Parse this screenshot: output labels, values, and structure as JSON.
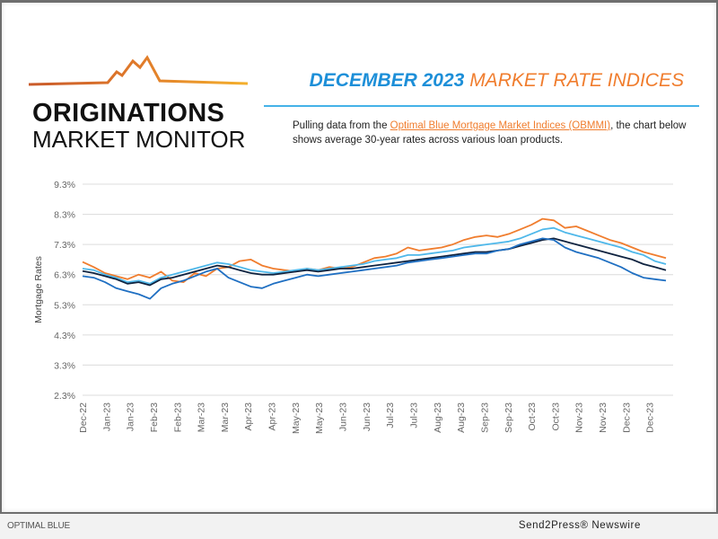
{
  "header": {
    "logo_line1": "ORIGINATIONS",
    "logo_line2": "MARKET MONITOR",
    "headline_part1": "DECEMBER 2023",
    "headline_part2": "MARKET RATE INDICES",
    "description_pre": "Pulling data from the ",
    "description_link": "Optimal Blue Mortgage Market Indices (OBMMI)",
    "description_post": ", the chart below shows average 30-year rates across various loan products."
  },
  "colors": {
    "headline_blue": "#1d8fd8",
    "accent_orange": "#f07d2e",
    "rule_blue": "#45b2e8"
  },
  "footer": {
    "left": "OPTIMAL BLUE",
    "right": "Send2Press® Newswire"
  },
  "chart_data": {
    "type": "line",
    "title": "",
    "xlabel": "",
    "ylabel": "Mortgage Rates",
    "ylim": [
      2.3,
      9.3
    ],
    "yticks": [
      "9.3%",
      "8.3%",
      "7.3%",
      "6.3%",
      "5.3%",
      "4.3%",
      "3.3%",
      "2.3%"
    ],
    "ytick_values": [
      9.3,
      8.3,
      7.3,
      6.3,
      5.3,
      4.3,
      3.3,
      2.3
    ],
    "xticks": [
      "Dec-22",
      "Jan-23",
      "Jan-23",
      "Feb-23",
      "Feb-23",
      "Mar-23",
      "Mar-23",
      "Apr-23",
      "Apr-23",
      "May-23",
      "May-23",
      "Jun-23",
      "Jun-23",
      "Jul-23",
      "Jul-23",
      "Aug-23",
      "Aug-23",
      "Sep-23",
      "Sep-23",
      "Oct-23",
      "Oct-23",
      "Nov-23",
      "Nov-23",
      "Dec-23",
      "Dec-23"
    ],
    "grid": true,
    "legend": "none",
    "series": [
      {
        "name": "Orange series",
        "color": "#f07d2e",
        "values": [
          6.72,
          6.55,
          6.35,
          6.25,
          6.15,
          6.3,
          6.2,
          6.4,
          6.1,
          6.05,
          6.35,
          6.25,
          6.5,
          6.55,
          6.75,
          6.8,
          6.6,
          6.5,
          6.45,
          6.4,
          6.5,
          6.45,
          6.55,
          6.5,
          6.55,
          6.7,
          6.85,
          6.9,
          7.0,
          7.2,
          7.1,
          7.15,
          7.2,
          7.3,
          7.45,
          7.55,
          7.6,
          7.55,
          7.65,
          7.8,
          7.95,
          8.15,
          8.1,
          7.85,
          7.9,
          7.75,
          7.6,
          7.45,
          7.35,
          7.2,
          7.05,
          6.95,
          6.85
        ]
      },
      {
        "name": "Light blue series",
        "color": "#4fb8ea",
        "values": [
          6.5,
          6.45,
          6.3,
          6.2,
          6.05,
          6.1,
          6.0,
          6.2,
          6.3,
          6.4,
          6.5,
          6.6,
          6.7,
          6.65,
          6.55,
          6.45,
          6.4,
          6.35,
          6.4,
          6.45,
          6.5,
          6.45,
          6.5,
          6.55,
          6.6,
          6.65,
          6.75,
          6.8,
          6.85,
          6.95,
          6.95,
          7.0,
          7.05,
          7.1,
          7.2,
          7.25,
          7.3,
          7.35,
          7.4,
          7.5,
          7.65,
          7.8,
          7.85,
          7.7,
          7.6,
          7.5,
          7.4,
          7.3,
          7.2,
          7.05,
          6.95,
          6.75,
          6.65
        ]
      },
      {
        "name": "Navy series",
        "color": "#0f2340",
        "values": [
          6.42,
          6.35,
          6.25,
          6.15,
          6.0,
          6.05,
          5.95,
          6.15,
          6.2,
          6.3,
          6.4,
          6.5,
          6.6,
          6.55,
          6.45,
          6.35,
          6.3,
          6.3,
          6.35,
          6.4,
          6.45,
          6.4,
          6.45,
          6.5,
          6.5,
          6.55,
          6.6,
          6.65,
          6.7,
          6.75,
          6.8,
          6.85,
          6.9,
          6.95,
          7.0,
          7.05,
          7.05,
          7.1,
          7.15,
          7.25,
          7.35,
          7.45,
          7.5,
          7.4,
          7.3,
          7.2,
          7.1,
          7.0,
          6.9,
          6.8,
          6.65,
          6.55,
          6.45
        ]
      },
      {
        "name": "Blue series",
        "color": "#1f6fc2",
        "values": [
          6.25,
          6.2,
          6.05,
          5.85,
          5.75,
          5.65,
          5.5,
          5.85,
          6.0,
          6.1,
          6.25,
          6.4,
          6.5,
          6.2,
          6.05,
          5.9,
          5.85,
          6.0,
          6.1,
          6.2,
          6.3,
          6.25,
          6.3,
          6.35,
          6.4,
          6.45,
          6.5,
          6.55,
          6.6,
          6.7,
          6.75,
          6.8,
          6.85,
          6.9,
          6.95,
          7.0,
          7.0,
          7.1,
          7.15,
          7.3,
          7.4,
          7.5,
          7.45,
          7.2,
          7.05,
          6.95,
          6.85,
          6.7,
          6.55,
          6.35,
          6.2,
          6.15,
          6.1
        ]
      }
    ]
  }
}
